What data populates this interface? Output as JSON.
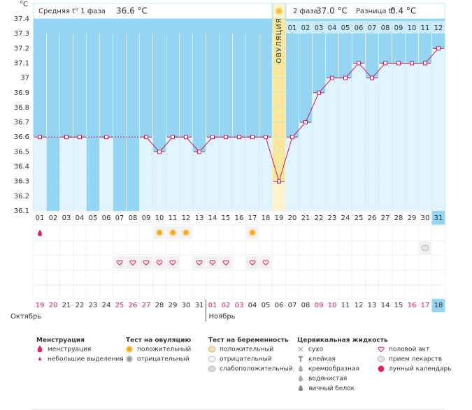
{
  "chart_data": {
    "type": "line",
    "y_label": "°C",
    "summary": {
      "phase1_label": "Средняя t° 1 фаза",
      "phase1_value": "36.6 °C",
      "phase2_label": "2 фаза",
      "phase2_value": "37.0 °C",
      "diff_label": "Разница t°",
      "diff_value": "0.4 °C"
    },
    "ovulation_label": "ОВУЛЯЦИЯ",
    "ovulation_day": "19",
    "phase2_days": [
      "01",
      "02",
      "03",
      "04",
      "05",
      "06",
      "07",
      "08",
      "09",
      "10",
      "11",
      "12"
    ],
    "categories": [
      "01",
      "02",
      "03",
      "04",
      "05",
      "06",
      "07",
      "08",
      "09",
      "10",
      "11",
      "12",
      "13",
      "14",
      "15",
      "16",
      "17",
      "18",
      "19",
      "20",
      "21",
      "22",
      "23",
      "24",
      "25",
      "26",
      "27",
      "28",
      "29",
      "30",
      "31"
    ],
    "values": [
      36.6,
      null,
      36.6,
      36.6,
      null,
      36.6,
      null,
      null,
      36.6,
      36.5,
      36.6,
      36.6,
      36.5,
      36.6,
      36.6,
      36.6,
      36.6,
      36.6,
      36.3,
      36.6,
      36.7,
      36.9,
      37.0,
      37.0,
      37.1,
      37.0,
      37.1,
      37.1,
      37.1,
      37.1,
      37.2
    ],
    "color": "#cc1f5e",
    "ylim": [
      36.1,
      37.4
    ],
    "yticks": [
      36.1,
      36.2,
      36.3,
      36.4,
      36.5,
      36.6,
      36.7,
      36.8,
      36.9,
      37,
      37.1,
      37.2,
      37.3,
      37.4
    ],
    "today": "31",
    "dates": [
      "19",
      "20",
      "21",
      "22",
      "23",
      "24",
      "25",
      "26",
      "27",
      "28",
      "29",
      "30",
      "31",
      "01",
      "02",
      "03",
      "04",
      "05",
      "06",
      "07",
      "08",
      "09",
      "10",
      "11",
      "12",
      "13",
      "14",
      "15",
      "16",
      "17",
      "18"
    ],
    "date_red": [
      true,
      true,
      false,
      false,
      false,
      false,
      true,
      true,
      true,
      false,
      false,
      false,
      false,
      true,
      true,
      true,
      false,
      false,
      false,
      false,
      false,
      true,
      true,
      false,
      false,
      false,
      false,
      false,
      true,
      true,
      false
    ],
    "months": [
      "Октябрь",
      "Ноябрь"
    ],
    "events": {
      "menstruation": [
        "01"
      ],
      "ovulation_test_positive": [
        "10",
        "11",
        "12",
        "17"
      ],
      "pregnancy_test_negative": [
        "30"
      ],
      "intercourse": [
        "07",
        "08",
        "09",
        "10",
        "11",
        "13",
        "14",
        "15",
        "17",
        "18"
      ]
    },
    "legend": [
      {
        "title": "Менструация",
        "items": [
          "менструация",
          "небольшие выделения"
        ]
      },
      {
        "title": "Тест на овуляцию",
        "items": [
          "положительный",
          "отрицательный"
        ]
      },
      {
        "title": "Тест на беременность",
        "items": [
          "положительный",
          "отрицательный",
          "слабоположительный"
        ]
      },
      {
        "title": "Цервикальная жидкость",
        "items": [
          "сухо",
          "клейкая",
          "кремообразная",
          "водянистая",
          "яичный белок"
        ]
      },
      {
        "items": [
          "половой акт",
          "прием лекарств",
          "лунный календарь"
        ]
      }
    ]
  }
}
